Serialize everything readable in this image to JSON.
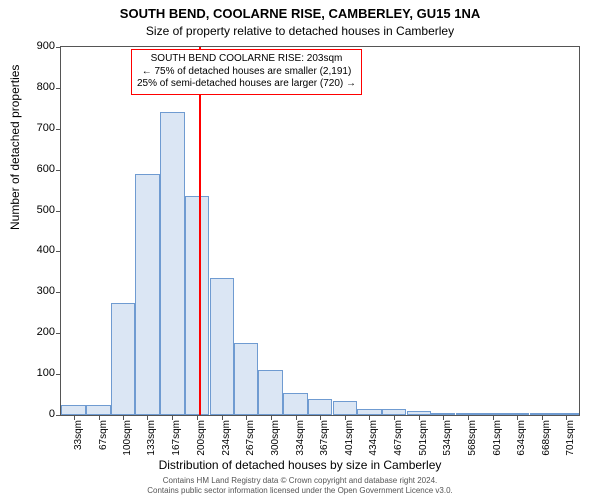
{
  "chart": {
    "type": "histogram",
    "title_main": "SOUTH BEND, COOLARNE RISE, CAMBERLEY, GU15 1NA",
    "title_sub": "Size of property relative to detached houses in Camberley",
    "title_fontsize": 13,
    "subtitle_fontsize": 12,
    "x_axis_label": "Distribution of detached houses by size in Camberley",
    "y_axis_label": "Number of detached properties",
    "label_fontsize": 12,
    "tick_fontsize": 11,
    "background_color": "#ffffff",
    "border_color": "#555555",
    "bar_fill": "#dbe6f4",
    "bar_stroke": "#6f9bd1",
    "bar_stroke_width": 1,
    "ref_line_color": "#ff0000",
    "ref_line_x": 203,
    "annotation_border": "#ff0000",
    "annotation_bg": "#ffffff",
    "annotation_lines": [
      "SOUTH BEND COOLARNE RISE: 203sqm",
      "← 75% of detached houses are smaller (2,191)",
      "25% of semi-detached houses are larger (720) →"
    ],
    "xlim": [
      16,
      718
    ],
    "ylim": [
      0,
      900
    ],
    "y_ticks": [
      0,
      100,
      200,
      300,
      400,
      500,
      600,
      700,
      800,
      900
    ],
    "x_tick_labels": [
      "33sqm",
      "67sqm",
      "100sqm",
      "133sqm",
      "167sqm",
      "200sqm",
      "234sqm",
      "267sqm",
      "300sqm",
      "334sqm",
      "367sqm",
      "401sqm",
      "434sqm",
      "467sqm",
      "501sqm",
      "534sqm",
      "568sqm",
      "601sqm",
      "634sqm",
      "668sqm",
      "701sqm"
    ],
    "x_tick_positions": [
      33,
      67,
      100,
      133,
      167,
      200,
      234,
      267,
      300,
      334,
      367,
      401,
      434,
      467,
      501,
      534,
      568,
      601,
      634,
      668,
      701
    ],
    "bars": [
      {
        "x_center": 33,
        "value": 25
      },
      {
        "x_center": 67,
        "value": 25
      },
      {
        "x_center": 100,
        "value": 275
      },
      {
        "x_center": 133,
        "value": 590
      },
      {
        "x_center": 167,
        "value": 740
      },
      {
        "x_center": 200,
        "value": 535
      },
      {
        "x_center": 234,
        "value": 335
      },
      {
        "x_center": 267,
        "value": 175
      },
      {
        "x_center": 300,
        "value": 110
      },
      {
        "x_center": 334,
        "value": 55
      },
      {
        "x_center": 367,
        "value": 40
      },
      {
        "x_center": 401,
        "value": 35
      },
      {
        "x_center": 434,
        "value": 15
      },
      {
        "x_center": 467,
        "value": 15
      },
      {
        "x_center": 501,
        "value": 10
      },
      {
        "x_center": 534,
        "value": 5
      },
      {
        "x_center": 568,
        "value": 5
      },
      {
        "x_center": 601,
        "value": 5
      },
      {
        "x_center": 634,
        "value": 3
      },
      {
        "x_center": 668,
        "value": 3
      },
      {
        "x_center": 701,
        "value": 3
      }
    ],
    "bar_width_data": 33,
    "attribution_line1": "Contains HM Land Registry data © Crown copyright and database right 2024.",
    "attribution_line2": "Contains public sector information licensed under the Open Government Licence v3.0."
  }
}
